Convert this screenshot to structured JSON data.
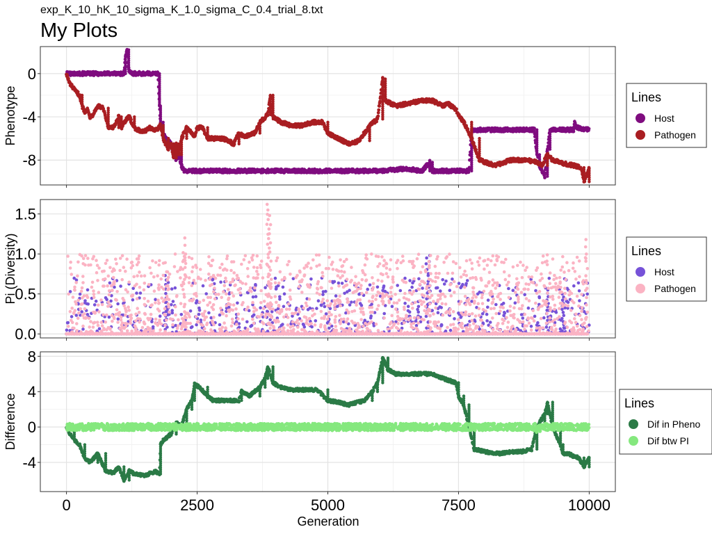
{
  "figure": {
    "subtitle": "exp_K_10_hK_10_sigma_K_1.0_sigma_C_0.4_trial_8.txt",
    "title": "My Plots",
    "xlabel": "Generation"
  },
  "chart_data": [
    {
      "type": "scatter",
      "ylabel": "Phenotype",
      "xlim": [
        -500,
        10500
      ],
      "ylim": [
        -10.3,
        2.5
      ],
      "yticks": [
        0,
        -4,
        -8
      ],
      "ytick_labels": [
        "0",
        "-4",
        "-8"
      ],
      "xticks": [
        0,
        2500,
        5000,
        7500,
        10000
      ],
      "grid": true,
      "legend": {
        "title": "Lines",
        "position": "right",
        "entries": [
          {
            "label": "Host",
            "color": "#7f0c7f"
          },
          {
            "label": "Pathogen",
            "color": "#a91e22"
          }
        ]
      },
      "series": [
        {
          "name": "Host",
          "color": "#7f0c7f",
          "points": [
            [
              0,
              0
            ],
            [
              500,
              0
            ],
            [
              1000,
              0
            ],
            [
              1100,
              0
            ],
            [
              1130,
              1.5
            ],
            [
              1160,
              2.2
            ],
            [
              1190,
              0.4
            ],
            [
              1250,
              0
            ],
            [
              1500,
              0
            ],
            [
              1750,
              0
            ],
            [
              1780,
              -3
            ],
            [
              1800,
              -4.5
            ],
            [
              1850,
              -5.5
            ],
            [
              1900,
              -6
            ],
            [
              2000,
              -6.5
            ],
            [
              2050,
              -7.5
            ],
            [
              2100,
              -8
            ],
            [
              2150,
              -7.5
            ],
            [
              2200,
              -8.5
            ],
            [
              2250,
              -9
            ],
            [
              3000,
              -9
            ],
            [
              4000,
              -9
            ],
            [
              5000,
              -9
            ],
            [
              6000,
              -9
            ],
            [
              6500,
              -8.8
            ],
            [
              6800,
              -9
            ],
            [
              6950,
              -8.2
            ],
            [
              7000,
              -9
            ],
            [
              7500,
              -9
            ],
            [
              7700,
              -9
            ],
            [
              7750,
              -5.2
            ],
            [
              8000,
              -5.2
            ],
            [
              8500,
              -5.2
            ],
            [
              8950,
              -5.2
            ],
            [
              9000,
              -7.5
            ],
            [
              9050,
              -8.5
            ],
            [
              9100,
              -9
            ],
            [
              9150,
              -9.5
            ],
            [
              9200,
              -7
            ],
            [
              9250,
              -5.2
            ],
            [
              9500,
              -5.2
            ],
            [
              9700,
              -5.2
            ],
            [
              9720,
              -4.5
            ],
            [
              9760,
              -5
            ],
            [
              10000,
              -5.2
            ]
          ]
        },
        {
          "name": "Pathogen",
          "color": "#a91e22",
          "points": [
            [
              0,
              0
            ],
            [
              50,
              -0.8
            ],
            [
              150,
              -1.5
            ],
            [
              250,
              -2
            ],
            [
              300,
              -3
            ],
            [
              350,
              -3.5
            ],
            [
              400,
              -3.3
            ],
            [
              450,
              -4
            ],
            [
              500,
              -3.8
            ],
            [
              600,
              -3
            ],
            [
              700,
              -3.2
            ],
            [
              800,
              -5
            ],
            [
              900,
              -5
            ],
            [
              1000,
              -4
            ],
            [
              1050,
              -5
            ],
            [
              1100,
              -4.5
            ],
            [
              1200,
              -4
            ],
            [
              1300,
              -5
            ],
            [
              1400,
              -5.3
            ],
            [
              1500,
              -5.3
            ],
            [
              1600,
              -5
            ],
            [
              1700,
              -5.3
            ],
            [
              1800,
              -4.8
            ],
            [
              1850,
              -6
            ],
            [
              1950,
              -7
            ],
            [
              2000,
              -6.5
            ],
            [
              2050,
              -7.8
            ],
            [
              2100,
              -6.5
            ],
            [
              2150,
              -7.5
            ],
            [
              2200,
              -6
            ],
            [
              2300,
              -5
            ],
            [
              2450,
              -5.8
            ],
            [
              2500,
              -5
            ],
            [
              2600,
              -5
            ],
            [
              2700,
              -6
            ],
            [
              2800,
              -6
            ],
            [
              3000,
              -6
            ],
            [
              3200,
              -6.5
            ],
            [
              3300,
              -5.5
            ],
            [
              3400,
              -5.8
            ],
            [
              3600,
              -5.5
            ],
            [
              3700,
              -4.5
            ],
            [
              3850,
              -3.8
            ],
            [
              3900,
              -2
            ],
            [
              3950,
              -4
            ],
            [
              4100,
              -4.5
            ],
            [
              4300,
              -4.8
            ],
            [
              4500,
              -4.8
            ],
            [
              4700,
              -4.5
            ],
            [
              4900,
              -4.5
            ],
            [
              5000,
              -5.5
            ],
            [
              5200,
              -6
            ],
            [
              5400,
              -6.5
            ],
            [
              5600,
              -6.2
            ],
            [
              5800,
              -4.8
            ],
            [
              5950,
              -4.2
            ],
            [
              6050,
              -0.5
            ],
            [
              6100,
              -2.5
            ],
            [
              6300,
              -3
            ],
            [
              6500,
              -2.8
            ],
            [
              6800,
              -2.5
            ],
            [
              7000,
              -2.5
            ],
            [
              7200,
              -3
            ],
            [
              7300,
              -2.8
            ],
            [
              7450,
              -3.3
            ],
            [
              7500,
              -3.8
            ],
            [
              7600,
              -4.5
            ],
            [
              7750,
              -6
            ],
            [
              7900,
              -8
            ],
            [
              8200,
              -8.5
            ],
            [
              8500,
              -8
            ],
            [
              8800,
              -8
            ],
            [
              9000,
              -8.2
            ],
            [
              9100,
              -8.5
            ],
            [
              9200,
              -7.5
            ],
            [
              9300,
              -8
            ],
            [
              9500,
              -8.3
            ],
            [
              9700,
              -8.5
            ],
            [
              9850,
              -8.7
            ],
            [
              9900,
              -10
            ],
            [
              10000,
              -8.8
            ]
          ]
        }
      ]
    },
    {
      "type": "scatter",
      "ylabel": "Pi (Diversity)",
      "xlim": [
        -500,
        10500
      ],
      "ylim": [
        -0.05,
        1.68
      ],
      "yticks": [
        0,
        0.5,
        1,
        1.5
      ],
      "ytick_labels": [
        "0.0",
        "0.5",
        "1.0",
        "1.5"
      ],
      "xticks": [
        0,
        2500,
        5000,
        7500,
        10000
      ],
      "grid": true,
      "legend": {
        "title": "Lines",
        "position": "right",
        "entries": [
          {
            "label": "Host",
            "color": "#7652d8"
          },
          {
            "label": "Pathogen",
            "color": "#fbb3c3"
          }
        ]
      },
      "series": [
        {
          "name": "Host",
          "color": "#7652d8",
          "scatter": {
            "seed": 11,
            "count": 700,
            "max": 0.7,
            "baseline_points": 200,
            "spikes": [
              [
                1900,
                0.73
              ],
              [
                6900,
                0.95
              ],
              [
                6940,
                0.98
              ],
              [
                9200,
                0.55
              ],
              [
                9500,
                0.5
              ]
            ]
          }
        },
        {
          "name": "Pathogen",
          "color": "#fbb3c3",
          "scatter": {
            "seed": 29,
            "count": 1600,
            "max": 1.0,
            "baseline_points": 300,
            "spikes": [
              [
                3850,
                1.62
              ],
              [
                3870,
                1.55
              ],
              [
                3900,
                1.48
              ],
              [
                2250,
                1.2
              ],
              [
                9950,
                1.18
              ],
              [
                6950,
                0.98
              ]
            ]
          }
        }
      ]
    },
    {
      "type": "scatter",
      "ylabel": "Difference",
      "xlim": [
        -500,
        10500
      ],
      "ylim": [
        -7.3,
        8.5
      ],
      "yticks": [
        8,
        4,
        0,
        -4
      ],
      "ytick_labels": [
        "8",
        "4",
        "0",
        "-4"
      ],
      "xticks": [
        0,
        2500,
        5000,
        7500,
        10000
      ],
      "xtick_labels": [
        "0",
        "2500",
        "5000",
        "7500",
        "10000"
      ],
      "grid": true,
      "legend": {
        "title": "Lines",
        "position": "right",
        "entries": [
          {
            "label": "Dif in Pheno",
            "color": "#2b7a46"
          },
          {
            "label": "Dif btw PI",
            "color": "#85e87e"
          }
        ]
      },
      "series": [
        {
          "name": "Dif in Pheno",
          "color": "#2b7a46",
          "points": [
            [
              0,
              0
            ],
            [
              50,
              -0.6
            ],
            [
              150,
              -1.5
            ],
            [
              250,
              -2
            ],
            [
              350,
              -3.5
            ],
            [
              450,
              -4
            ],
            [
              600,
              -3
            ],
            [
              750,
              -5
            ],
            [
              900,
              -5.2
            ],
            [
              1000,
              -4.5
            ],
            [
              1100,
              -6
            ],
            [
              1200,
              -5
            ],
            [
              1300,
              -5.3
            ],
            [
              1500,
              -5.5
            ],
            [
              1700,
              -5
            ],
            [
              1780,
              -5.3
            ],
            [
              1800,
              -2
            ],
            [
              1850,
              -1.5
            ],
            [
              2000,
              -0.8
            ],
            [
              2100,
              0.5
            ],
            [
              2200,
              0
            ],
            [
              2300,
              2
            ],
            [
              2400,
              3
            ],
            [
              2450,
              4.8
            ],
            [
              2550,
              4.5
            ],
            [
              2700,
              3.5
            ],
            [
              2800,
              3
            ],
            [
              3000,
              3
            ],
            [
              3300,
              3
            ],
            [
              3350,
              4
            ],
            [
              3500,
              3.5
            ],
            [
              3700,
              4.5
            ],
            [
              3800,
              5.5
            ],
            [
              3850,
              6.8
            ],
            [
              3950,
              5
            ],
            [
              4100,
              4.5
            ],
            [
              4300,
              4.2
            ],
            [
              4600,
              4.2
            ],
            [
              4800,
              4.2
            ],
            [
              5000,
              3
            ],
            [
              5200,
              2.8
            ],
            [
              5400,
              2.5
            ],
            [
              5700,
              3
            ],
            [
              5850,
              4
            ],
            [
              5950,
              5
            ],
            [
              6050,
              7.8
            ],
            [
              6150,
              6.5
            ],
            [
              6300,
              6
            ],
            [
              6600,
              6
            ],
            [
              6800,
              6
            ],
            [
              7000,
              6
            ],
            [
              7200,
              5.5
            ],
            [
              7450,
              5
            ],
            [
              7500,
              3.5
            ],
            [
              7600,
              2.5
            ],
            [
              7700,
              0
            ],
            [
              7800,
              -2.5
            ],
            [
              8000,
              -2.8
            ],
            [
              8300,
              -3
            ],
            [
              8500,
              -2.8
            ],
            [
              8700,
              -2.8
            ],
            [
              8900,
              -2.5
            ],
            [
              9000,
              0
            ],
            [
              9150,
              1.5
            ],
            [
              9200,
              2.8
            ],
            [
              9300,
              0
            ],
            [
              9450,
              -2
            ],
            [
              9500,
              -3
            ],
            [
              9600,
              -3
            ],
            [
              9700,
              -3.3
            ],
            [
              9800,
              -3.5
            ],
            [
              9900,
              -4.5
            ],
            [
              10000,
              -3.5
            ]
          ]
        },
        {
          "name": "Dif btw PI",
          "color": "#85e87e",
          "scatter": {
            "seed": 47,
            "count": 2200,
            "max": 0.8,
            "baseline_points": 0,
            "spikes": [
              [
                9000,
                -0.6
              ],
              [
                9050,
                -0.5
              ],
              [
                2300,
                -0.4
              ]
            ]
          }
        }
      ]
    }
  ]
}
